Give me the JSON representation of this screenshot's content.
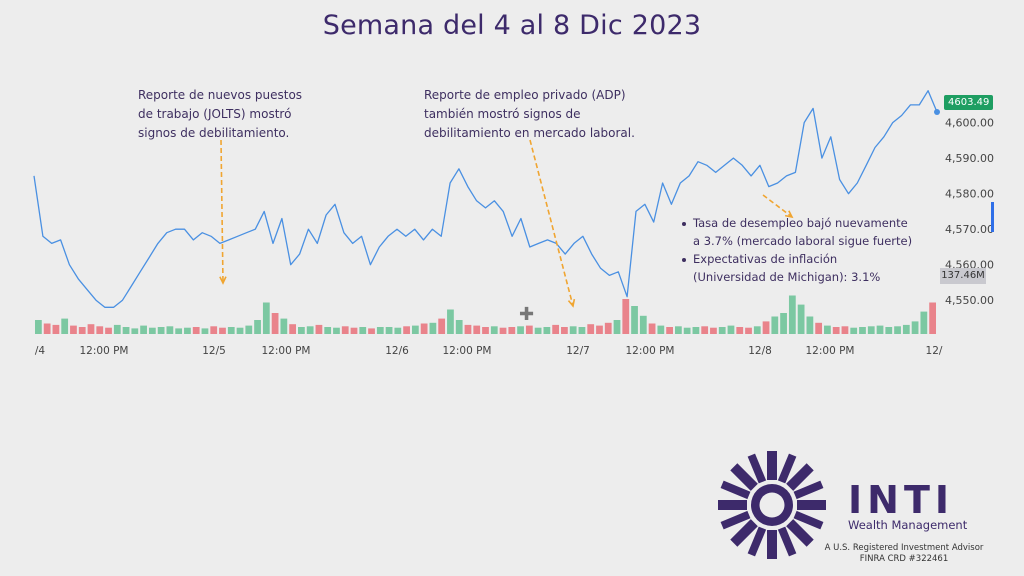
{
  "title": "Semana del 4 al 8 Dic 2023",
  "annotations": {
    "jolts": "Reporte de nuevos puestos\nde trabajo (JOLTS) mostró\nsignos de debilitamiento.",
    "adp": "Reporte de empleo privado (ADP)\ntambién mostró signos de\ndebilitamiento en mercado laboral.",
    "bullets": [
      "Tasa de desempleo bajó nuevamente\na 3.7% (mercado laboral sigue fuerte)",
      "Expectativas de inflación\n(Universidad de Michigan): 3.1%"
    ]
  },
  "price_tag": "4603.49",
  "volume_tag": "137.46M",
  "brand": {
    "name": "INTI",
    "subtitle": "Wealth Management",
    "advisor": "A U.S. Registered Investment Advisor\nFINRA CRD #322461"
  },
  "colors": {
    "title": "#3d2a6b",
    "line": "#4a90e2",
    "volume_up": "#7cc8a2",
    "volume_down": "#e9838b",
    "arrow": "#f0a531",
    "price_tag": "#1e9e62",
    "logo": "#3d2a6b"
  },
  "chart_data": {
    "type": "line",
    "title": "Semana del 4 al 8 Dic 2023",
    "xlabel": "",
    "ylabel": "",
    "x_tick_labels": [
      "/4",
      "12:00 PM",
      "12/5",
      "12:00 PM",
      "12/6",
      "12:00 PM",
      "12/7",
      "12:00 PM",
      "12/8",
      "12:00 PM",
      "12/"
    ],
    "y_tick_labels": [
      "4,550.00",
      "4,560.00",
      "4,570.00",
      "4,580.00",
      "4,590.00",
      "4,600.00"
    ],
    "ylim": [
      4545,
      4612
    ],
    "last_price": 4603.49,
    "last_volume": "137.46M",
    "grid": false,
    "series": [
      {
        "values": [
          4585,
          4568,
          4566,
          4567,
          4560,
          4556,
          4553,
          4550,
          4548,
          4548,
          4550,
          4554,
          4558,
          4562,
          4566,
          4569,
          4570,
          4570,
          4567,
          4569,
          4568,
          4566,
          4567,
          4568,
          4569,
          4570,
          4575,
          4566,
          4573,
          4560,
          4563,
          4570,
          4566,
          4574,
          4577,
          4569,
          4566,
          4568,
          4560,
          4565,
          4568,
          4570,
          4568,
          4570,
          4567,
          4570,
          4568,
          4583,
          4587,
          4582,
          4578,
          4576,
          4578,
          4575,
          4568,
          4573,
          4565,
          4566,
          4567,
          4566,
          4563,
          4566,
          4568,
          4563,
          4559,
          4557,
          4558,
          4551,
          4575,
          4577,
          4572,
          4583,
          4577,
          4583,
          4585,
          4589,
          4588,
          4586,
          4588,
          4590,
          4588,
          4585,
          4588,
          4582,
          4583,
          4585,
          4586,
          4600,
          4604,
          4590,
          4596,
          4584,
          4580,
          4583,
          4588,
          4593,
          4596,
          4600,
          4602,
          4605,
          4605,
          4609,
          4603
        ],
        "volumes": [
          2.0,
          1.5,
          1.3,
          2.2,
          1.2,
          1.0,
          1.4,
          1.1,
          0.9,
          1.3,
          1.0,
          0.8,
          1.2,
          0.9,
          1.0,
          1.1,
          0.8,
          0.9,
          1.0,
          0.8,
          1.1,
          0.9,
          1.0,
          0.9,
          1.2,
          2.0,
          4.5,
          3.0,
          2.2,
          1.4,
          1.0,
          1.1,
          1.3,
          1.0,
          0.9,
          1.1,
          0.9,
          1.0,
          0.8,
          1.0,
          1.0,
          0.9,
          1.1,
          1.2,
          1.5,
          1.6,
          2.2,
          3.5,
          2.0,
          1.3,
          1.2,
          1.0,
          1.1,
          0.9,
          1.0,
          1.1,
          1.2,
          0.9,
          1.0,
          1.3,
          1.0,
          1.1,
          1.0,
          1.4,
          1.2,
          1.6,
          2.0,
          5.0,
          4.0,
          2.6,
          1.5,
          1.2,
          1.0,
          1.1,
          0.9,
          1.0,
          1.1,
          0.9,
          1.0,
          1.2,
          1.0,
          0.9,
          1.1,
          1.8,
          2.5,
          3.0,
          5.5,
          4.2,
          2.5,
          1.6,
          1.2,
          1.0,
          1.1,
          0.9,
          1.0,
          1.1,
          1.2,
          1.0,
          1.1,
          1.3,
          1.8,
          3.2,
          4.5
        ]
      }
    ]
  }
}
